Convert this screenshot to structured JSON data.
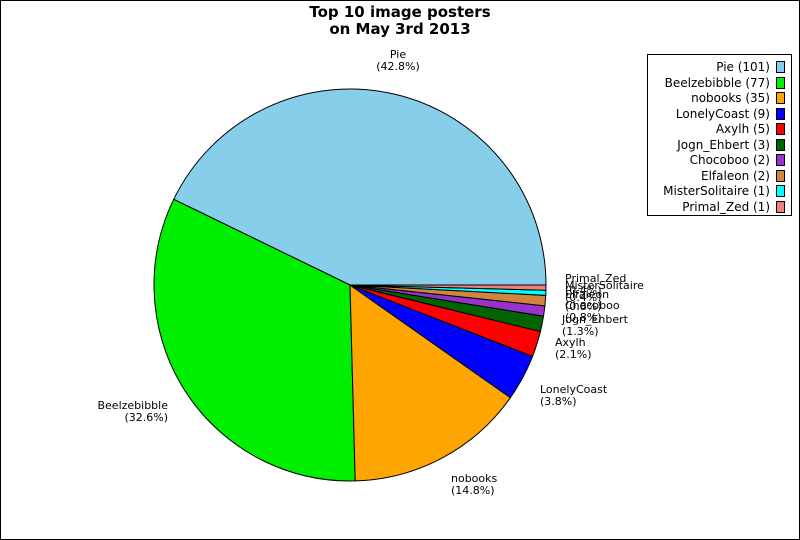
{
  "chart_data": {
    "type": "pie",
    "title_lines": [
      "Top 10 image posters",
      "on May 3rd 2013"
    ],
    "slices": [
      {
        "name": "Pie",
        "value": 101,
        "pct": "(42.8%)",
        "legend": "Pie (101)",
        "color": "#87ceeb"
      },
      {
        "name": "Beelzebibble",
        "value": 77,
        "pct": "(32.6%)",
        "legend": "Beelzebibble (77)",
        "color": "#00ee00"
      },
      {
        "name": "nobooks",
        "value": 35,
        "pct": "(14.8%)",
        "legend": "nobooks (35)",
        "color": "#ffa500"
      },
      {
        "name": "LonelyCoast",
        "value": 9,
        "pct": "(3.8%)",
        "legend": "LonelyCoast (9)",
        "color": "#0000ff"
      },
      {
        "name": "Axylh",
        "value": 5,
        "pct": "(2.1%)",
        "legend": "Axylh (5)",
        "color": "#ff0000"
      },
      {
        "name": "Jogn_Ehbert",
        "value": 3,
        "pct": "(1.3%)",
        "legend": "Jogn_Ehbert (3)",
        "color": "#006400"
      },
      {
        "name": "Chocoboo",
        "value": 2,
        "pct": "(0.8%)",
        "legend": "Chocoboo (2)",
        "color": "#9932cc"
      },
      {
        "name": "Elfaleon",
        "value": 2,
        "pct": "(0.8%)",
        "legend": "Elfaleon (2)",
        "color": "#cd853f"
      },
      {
        "name": "MisterSolitaire",
        "value": 1,
        "pct": "(0.4%)",
        "legend": "MisterSolitaire (1)",
        "color": "#00ffff"
      },
      {
        "name": "Primal_Zed",
        "value": 1,
        "pct": "(0.4%)",
        "legend": "Primal_Zed (1)",
        "color": "#f08080"
      }
    ],
    "start_angle_deg": 0,
    "direction": "counterclockwise",
    "legend_position": "top-right"
  }
}
